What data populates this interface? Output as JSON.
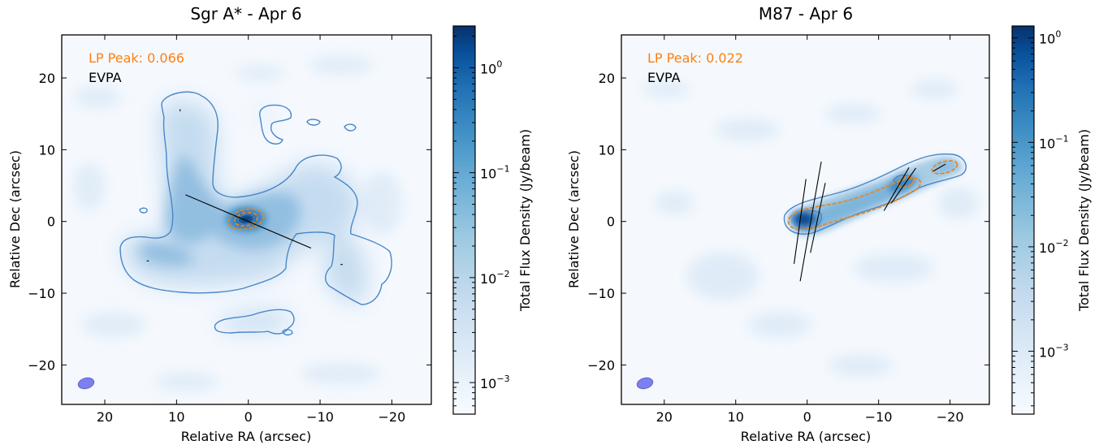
{
  "chart_data": [
    {
      "type": "heatmap",
      "title": "Sgr A* - Apr 6",
      "xlabel": "Relative RA (arcsec)",
      "ylabel": "Relative Dec (arcsec)",
      "xlim": [
        26,
        -25.5
      ],
      "ylim": [
        -25.5,
        26
      ],
      "x_ticks": [
        20,
        10,
        0,
        -10,
        -20
      ],
      "y_ticks": [
        20,
        10,
        0,
        -10,
        -20
      ],
      "x_tick_labels": [
        "20",
        "10",
        "0",
        "−10",
        "−20"
      ],
      "y_tick_labels": [
        "20",
        "10",
        "0",
        "−10",
        "−20"
      ],
      "colorbar": {
        "label": "Total Flux Density (Jy/beam)",
        "scale": "log",
        "range": [
          0.0005,
          2.5
        ],
        "ticks": [
          0.001,
          0.01,
          0.1,
          1
        ],
        "tick_bases": [
          "10",
          "10",
          "10",
          "10"
        ],
        "tick_exps": [
          "-3",
          "-2",
          "-1",
          "0"
        ]
      },
      "annotations": [
        {
          "text": "LP Peak: 0.066",
          "color": "#ff7f0e"
        },
        {
          "text": "EVPA",
          "color": "#000000"
        }
      ],
      "beam": {
        "x": 22.5,
        "y": -22.8,
        "major_arcsec": 2.6,
        "minor_arcsec": 1.7,
        "angle_deg": 75
      },
      "core": {
        "x": 0,
        "y": 0,
        "peak_jy_per_beam": 2.2
      },
      "evpa_vectors": [
        {
          "x": 0,
          "y": 0,
          "length_arcsec": 19,
          "angle_deg": -23
        },
        {
          "x": 14,
          "y": -5.5,
          "length_arcsec": 0.3,
          "angle_deg": 0
        },
        {
          "x": 9.5,
          "y": 15.5,
          "length_arcsec": 0.3,
          "angle_deg": 90
        },
        {
          "x": -13,
          "y": -6,
          "length_arcsec": 0.3,
          "angle_deg": 0
        }
      ],
      "colors": {
        "contour_total": "#4a86c8",
        "contour_lp": "#e0882a",
        "beam": "#7b7ff0"
      }
    },
    {
      "type": "heatmap",
      "title": "M87 - Apr 6",
      "xlabel": "Relative RA (arcsec)",
      "ylabel": "Relative Dec (arcsec)",
      "xlim": [
        26,
        -25.5
      ],
      "ylim": [
        -25.5,
        26
      ],
      "x_ticks": [
        20,
        10,
        0,
        -10,
        -20
      ],
      "y_ticks": [
        20,
        10,
        0,
        -10,
        -20
      ],
      "x_tick_labels": [
        "20",
        "10",
        "0",
        "−10",
        "−20"
      ],
      "y_tick_labels": [
        "20",
        "10",
        "0",
        "−10",
        "−20"
      ],
      "colorbar": {
        "label": "Total Flux Density (Jy/beam)",
        "scale": "log",
        "range": [
          0.00025,
          1.3
        ],
        "ticks": [
          0.001,
          0.01,
          0.1,
          1
        ],
        "tick_bases": [
          "10",
          "10",
          "10",
          "10"
        ],
        "tick_exps": [
          "-3",
          "-2",
          "-1",
          "0"
        ]
      },
      "annotations": [
        {
          "text": "LP Peak: 0.022",
          "color": "#ff7f0e"
        },
        {
          "text": "EVPA",
          "color": "#000000"
        }
      ],
      "beam": {
        "x": 22.5,
        "y": -22.8,
        "major_arcsec": 2.6,
        "minor_arcsec": 1.7,
        "angle_deg": 75
      },
      "core": {
        "x": 0,
        "y": 0,
        "peak_jy_per_beam": 1.2
      },
      "jet_knots": [
        {
          "x": -12.5,
          "y": 5,
          "flux_jy_per_beam": 0.06
        },
        {
          "x": -18,
          "y": 7.5,
          "flux_jy_per_beam": 0.02
        }
      ],
      "evpa_vectors": [
        {
          "x": -0.5,
          "y": 0,
          "length_arcsec": 17,
          "angle_deg": 80
        },
        {
          "x": 1,
          "y": 0,
          "length_arcsec": 12,
          "angle_deg": 82
        },
        {
          "x": -1.5,
          "y": 0.5,
          "length_arcsec": 10,
          "angle_deg": 78
        },
        {
          "x": -12.5,
          "y": 4.5,
          "length_arcsec": 7,
          "angle_deg": 60
        },
        {
          "x": -13.5,
          "y": 5,
          "length_arcsec": 6,
          "angle_deg": 55
        },
        {
          "x": -18.5,
          "y": 7.5,
          "length_arcsec": 2,
          "angle_deg": 30
        }
      ],
      "colors": {
        "contour_total": "#4a86c8",
        "contour_lp": "#e0882a",
        "beam": "#7b7ff0"
      }
    }
  ]
}
